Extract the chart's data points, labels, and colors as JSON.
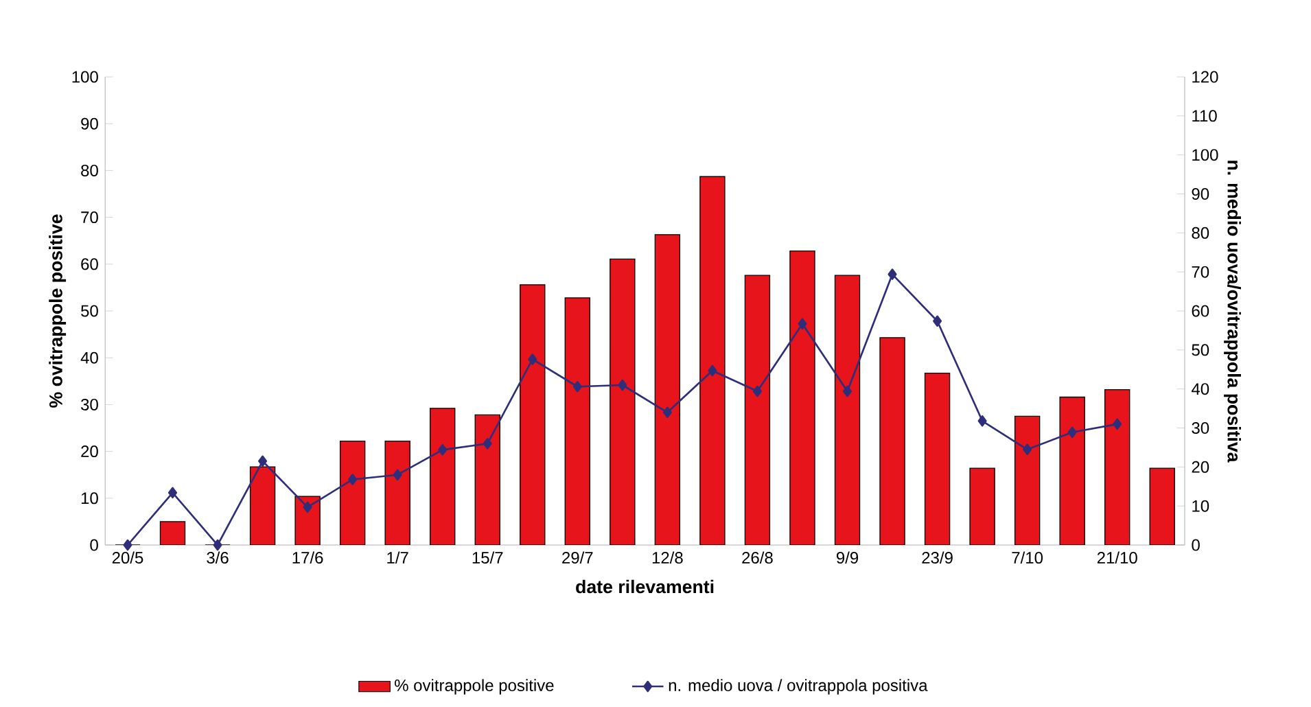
{
  "chart_data": {
    "type": "bar",
    "xlabel": "date rilevamenti",
    "ylabel": "% ovitrappole positive",
    "y2label": "n. medio uova/ovitrappola positiva",
    "categories": [
      "20/5",
      null,
      "3/6",
      null,
      "17/6",
      null,
      "1/7",
      null,
      "15/7",
      null,
      "29/7",
      null,
      "12/8",
      null,
      "26/8",
      null,
      "9/9",
      null,
      "23/9",
      null,
      "7/10",
      null,
      "21/10",
      null
    ],
    "series": [
      {
        "name": "% ovitrappole positive",
        "color": "#e8141c",
        "values": [
          0,
          5,
          0,
          16.7,
          10.4,
          22.2,
          22.2,
          29.2,
          27.8,
          55.6,
          52.8,
          61.1,
          66.3,
          78.7,
          57.6,
          62.8,
          57.6,
          44.3,
          36.7,
          16.4,
          27.5,
          31.6,
          33.2,
          16.4
        ]
      },
      {
        "name": "n. medio uova / ovitrappola positiva",
        "type": "line",
        "axis": "y2",
        "color": "#2e2e7a",
        "values": [
          0,
          13.4,
          0,
          21.5,
          9.7,
          16.8,
          18,
          24.4,
          26,
          47.6,
          40.6,
          41,
          34,
          44.7,
          39.4,
          56.7,
          39.4,
          69.4,
          57.4,
          31.8,
          24.5,
          28.9,
          31,
          null
        ]
      }
    ],
    "ylim": [
      0,
      100
    ],
    "yticks": [
      0,
      10,
      20,
      30,
      40,
      50,
      60,
      70,
      80,
      90,
      100
    ],
    "y2lim": [
      0,
      120
    ],
    "y2ticks": [
      0,
      10,
      20,
      30,
      40,
      50,
      60,
      70,
      80,
      90,
      100,
      110,
      120
    ],
    "marker": "diamond",
    "line_style": "solid",
    "legend": "bottom",
    "grid": false
  }
}
